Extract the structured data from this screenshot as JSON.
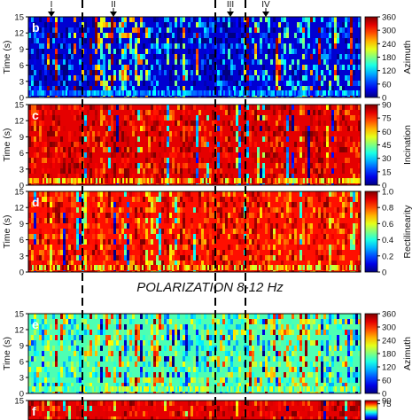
{
  "section_titles": [
    "POLARIZATION 8-12 Hz"
  ],
  "markers": [
    "I",
    "II",
    "III",
    "IV"
  ],
  "chart_data": [
    {
      "type": "heatmap",
      "panel_letter": "b",
      "ylabel": "Time (s)",
      "yticks": [
        "0",
        "3",
        "6",
        "9",
        "12",
        "15"
      ],
      "ylim": [
        0,
        15
      ],
      "colorbar_label": "Azimuth",
      "colorbar_ticks": [
        "0",
        "60",
        "120",
        "180",
        "240",
        "300",
        "360"
      ],
      "colorbar_range": [
        0,
        360
      ],
      "background_value": "blue (0-60)"
    },
    {
      "type": "heatmap",
      "panel_letter": "c",
      "ylabel": "Time (s)",
      "yticks": [
        "0",
        "3",
        "6",
        "9",
        "12",
        "15"
      ],
      "ylim": [
        0,
        15
      ],
      "colorbar_label": "Incination",
      "colorbar_ticks": [
        "0",
        "15",
        "30",
        "45",
        "60",
        "75",
        "90"
      ],
      "colorbar_range": [
        0,
        90
      ],
      "background_value": "red (75-90)"
    },
    {
      "type": "heatmap",
      "panel_letter": "d",
      "ylabel": "Time (s)",
      "yticks": [
        "0",
        "3",
        "6",
        "9",
        "12",
        "15"
      ],
      "ylim": [
        0,
        15
      ],
      "colorbar_label": "Rectilinearity",
      "colorbar_ticks": [
        "0",
        "0.2",
        "0.4",
        "0.6",
        "0.8",
        "1.0"
      ],
      "colorbar_range": [
        0,
        1
      ],
      "background_value": "red-orange (0.8-1.0)"
    },
    {
      "type": "heatmap",
      "panel_letter": "e",
      "ylabel": "Time (s)",
      "yticks": [
        "0",
        "3",
        "6",
        "9",
        "12",
        "15"
      ],
      "ylim": [
        0,
        15
      ],
      "colorbar_label": "Azimuth",
      "colorbar_ticks": [
        "0",
        "60",
        "120",
        "180",
        "240",
        "300",
        "360"
      ],
      "colorbar_range": [
        0,
        360
      ],
      "background_value": "cyan-yellow (120-240)"
    },
    {
      "type": "heatmap",
      "panel_letter": "f",
      "ylabel": "",
      "yticks": [
        "15"
      ],
      "ylim": [
        0,
        15
      ],
      "colorbar_label": "",
      "colorbar_ticks": [
        "90",
        "75"
      ],
      "colorbar_range": [
        0,
        90
      ],
      "background_value": "red (75-90)"
    }
  ]
}
